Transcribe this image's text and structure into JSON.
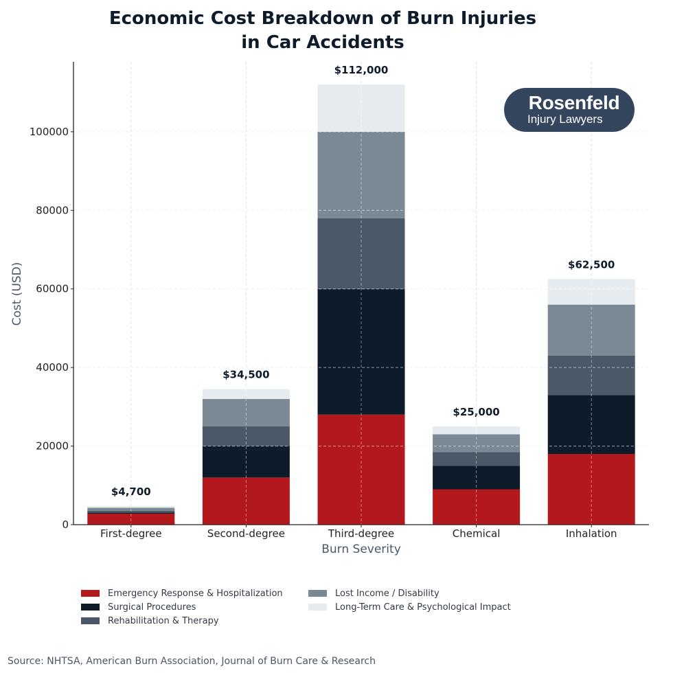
{
  "title": {
    "line1": "Economic Cost Breakdown of Burn Injuries",
    "line2": "in Car Accidents"
  },
  "logo": {
    "name": "Rosenfeld",
    "subtitle": "Injury Lawyers"
  },
  "source": "Source: NHTSA, American Burn Association, Journal of Burn Care & Research",
  "colors": {
    "emergency": "#b3181c",
    "surgical": "#0d1b2a",
    "rehab": "#4a5868",
    "lost_income": "#7b8994",
    "long_term": "#e6ebf0",
    "axis_label": "#4a5868",
    "total_label": "#0d1b2a"
  },
  "legend": [
    {
      "label": "Emergency Response & Hospitalization",
      "color": "#b3181c"
    },
    {
      "label": "Surgical Procedures",
      "color": "#0d1b2a"
    },
    {
      "label": "Rehabilitation & Therapy",
      "color": "#4a5868"
    },
    {
      "label": "Lost Income / Disability",
      "color": "#7b8994"
    },
    {
      "label": "Long-Term Care & Psychological Impact",
      "color": "#e6ebf0"
    }
  ],
  "chart_data": {
    "type": "bar",
    "stacked": true,
    "title": "Economic Cost Breakdown of Burn Injuries in Car Accidents",
    "xlabel": "Burn Severity",
    "ylabel": "Cost (USD)",
    "categories": [
      "First-degree",
      "Second-degree",
      "Third-degree",
      "Chemical",
      "Inhalation"
    ],
    "series": [
      {
        "name": "Emergency Response & Hospitalization",
        "values": [
          2800,
          12000,
          28000,
          9000,
          18000
        ]
      },
      {
        "name": "Surgical Procedures",
        "values": [
          300,
          8000,
          32000,
          6000,
          15000
        ]
      },
      {
        "name": "Rehabilitation & Therapy",
        "values": [
          400,
          5000,
          18000,
          3500,
          10000
        ]
      },
      {
        "name": "Lost Income / Disability",
        "values": [
          800,
          7000,
          22000,
          4500,
          13000
        ]
      },
      {
        "name": "Long-Term Care & Psychological Impact",
        "values": [
          400,
          2500,
          12000,
          2000,
          6500
        ]
      }
    ],
    "totals": [
      4700,
      34500,
      112000,
      25000,
      62500
    ],
    "total_labels": [
      "$4,700",
      "$34,500",
      "$112,000",
      "$25,000",
      "$62,500"
    ],
    "yticks": [
      0,
      20000,
      40000,
      60000,
      80000,
      100000
    ],
    "ytick_labels": [
      "0",
      "20000",
      "40000",
      "60000",
      "80000",
      "100000"
    ],
    "ylim": [
      0,
      117800
    ],
    "grid": true,
    "legend_position": "bottom"
  }
}
